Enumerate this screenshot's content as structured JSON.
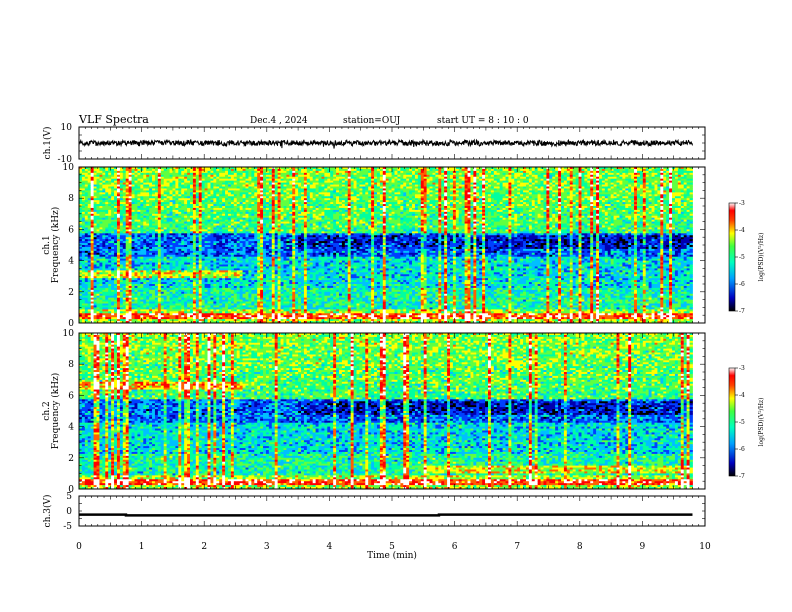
{
  "header": {
    "title": "VLF Spectra",
    "date": "Dec.4 , 2024",
    "station": "station=OUJ",
    "start": "start UT = 8 : 10 : 0"
  },
  "chart_data": [
    {
      "type": "line",
      "panel": "ch.1 waveform",
      "ylabel": "ch.1(V)",
      "ylim": [
        -10,
        10
      ],
      "yticks": [
        10,
        -10
      ],
      "xlim": [
        0,
        10
      ],
      "series": [
        {
          "values": "noisy signal approximately between -2 and 2 V over 0–9.8 min"
        }
      ]
    },
    {
      "type": "heatmap",
      "panel": "ch.1 spectrogram",
      "ylabel": "ch.1 Frequency (kHz)",
      "ylim": [
        0,
        10
      ],
      "yticks": [
        0,
        2,
        4,
        6,
        8,
        10
      ],
      "xlim": [
        0,
        10
      ],
      "colorbar": {
        "label": "log(PSD)(V²/Hz)",
        "ticks": [
          -3,
          -4,
          -5,
          -6,
          -7
        ]
      }
    },
    {
      "type": "heatmap",
      "panel": "ch.2 spectrogram",
      "ylabel": "ch.2 Frequency (kHz)",
      "ylim": [
        0,
        10
      ],
      "yticks": [
        0,
        2,
        4,
        6,
        8,
        10
      ],
      "xlim": [
        0,
        10
      ],
      "colorbar": {
        "label": "log(PSD)(V²/Hz)",
        "ticks": [
          -3,
          -4,
          -5,
          -6,
          -7
        ]
      }
    },
    {
      "type": "line",
      "panel": "ch.3 signal",
      "ylabel": "ch.3(V)",
      "ylim": [
        -5,
        5
      ],
      "yticks": [
        5,
        0,
        -5
      ],
      "xlim": [
        0,
        10
      ],
      "series": [
        {
          "values": [
            [
              0,
              -1.2
            ],
            [
              0.75,
              -1.2
            ],
            [
              0.75,
              -1.45
            ],
            [
              5.75,
              -1.45
            ],
            [
              5.75,
              -1.2
            ],
            [
              9.8,
              -1.2
            ]
          ]
        }
      ]
    }
  ],
  "xaxis": {
    "label": "Time (min)",
    "ticks": [
      "0",
      "1",
      "2",
      "3",
      "4",
      "5",
      "6",
      "7",
      "8",
      "9",
      "10"
    ]
  },
  "colors": {
    "colormap": [
      "#000000",
      "#0000b0",
      "#0040ff",
      "#00c0ff",
      "#00ffa0",
      "#60ff40",
      "#ffff00",
      "#ff6000",
      "#ff0000",
      "#ffffff"
    ]
  }
}
